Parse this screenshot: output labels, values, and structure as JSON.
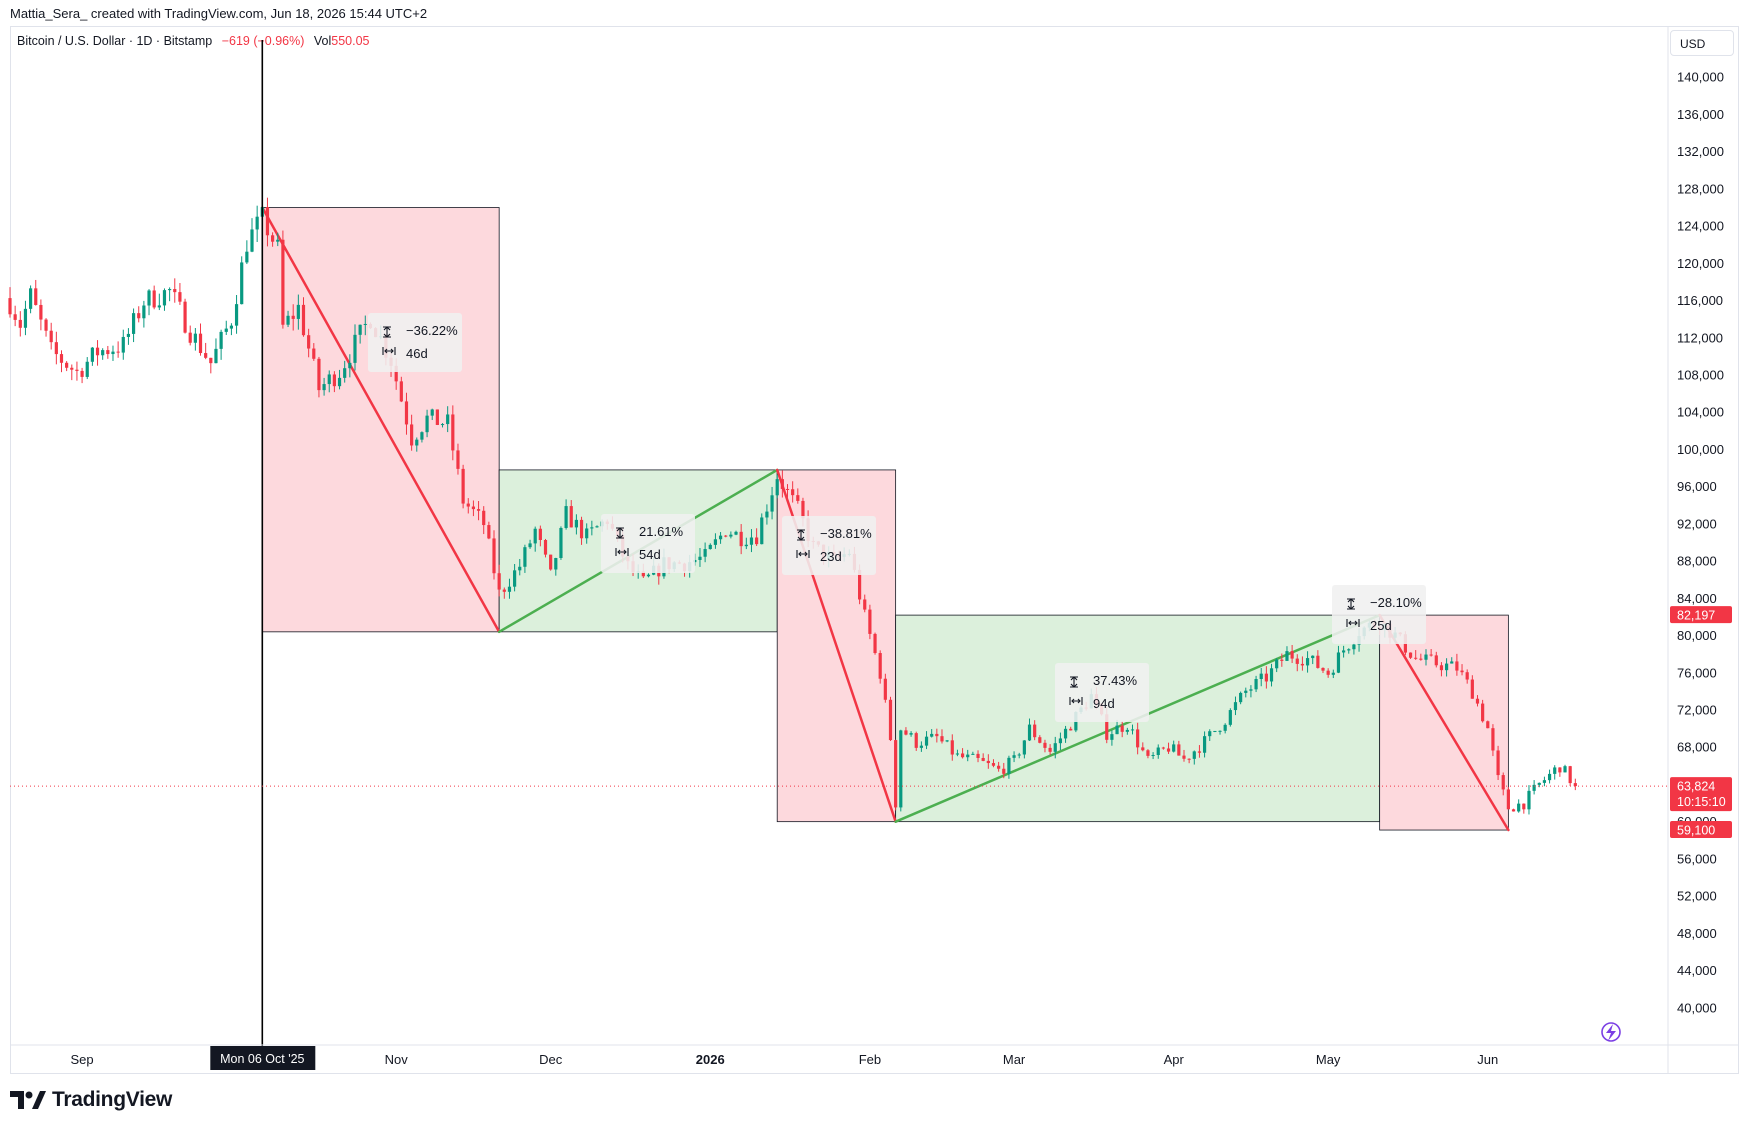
{
  "credit": "Mattia_Sera_ created with TradingView.com, Jun 18, 2026 15:44 UTC+2",
  "legend": {
    "symbol": "Bitcoin / U.S. Dollar · 1D · Bitstamp",
    "change": "−619 (−0.96%)",
    "vol_label": "Vol",
    "vol_value": "550.05"
  },
  "currency": "USD",
  "brand": "TradingView",
  "colors": {
    "up": "#089981",
    "down": "#f23645",
    "bear_zone": "#fdd9dd",
    "bull_zone": "#dcf0dc",
    "bear_line": "#f23645",
    "bull_line": "#4caf50"
  },
  "chart_data": {
    "type": "candlestick",
    "symbol": "BTCUSD",
    "interval": "1D",
    "ylim": [
      36000,
      144000
    ],
    "y_ticks": [
      40000,
      44000,
      48000,
      52000,
      56000,
      60000,
      64000,
      68000,
      72000,
      76000,
      80000,
      84000,
      88000,
      92000,
      96000,
      100000,
      104000,
      108000,
      112000,
      116000,
      120000,
      124000,
      128000,
      132000,
      136000,
      140000
    ],
    "x_ticks": [
      {
        "label": "Sep",
        "date": "2025-09-01",
        "bold": false
      },
      {
        "label": "Nov",
        "date": "2025-11-01",
        "bold": false
      },
      {
        "label": "Dec",
        "date": "2025-12-01",
        "bold": false
      },
      {
        "label": "2026",
        "date": "2026-01-01",
        "bold": true
      },
      {
        "label": "Feb",
        "date": "2026-02-01",
        "bold": false
      },
      {
        "label": "Mar",
        "date": "2026-03-01",
        "bold": false
      },
      {
        "label": "Apr",
        "date": "2026-04-01",
        "bold": false
      },
      {
        "label": "May",
        "date": "2026-05-01",
        "bold": false
      },
      {
        "label": "Jun",
        "date": "2026-06-01",
        "bold": false
      }
    ],
    "x_start": "2025-08-18",
    "x_end": "2026-07-06",
    "crosshair": {
      "date": "2025-10-06",
      "label": "Mon 06 Oct '25"
    },
    "price_tags": [
      {
        "price": 82197,
        "label": "82,197",
        "kind": "level"
      },
      {
        "price": 63824,
        "label": "63,824",
        "countdown": "10:15:10",
        "kind": "last"
      },
      {
        "price": 59100,
        "label": "59,100",
        "kind": "level"
      }
    ],
    "ranges": [
      {
        "kind": "bear",
        "start": "2025-10-06",
        "end": "2025-11-21",
        "high": 126000,
        "low": 80400,
        "pct": "−36.22%",
        "duration": "46d"
      },
      {
        "kind": "bull",
        "start": "2025-11-21",
        "end": "2026-01-14",
        "high": 97800,
        "low": 80400,
        "pct": "21.61%",
        "duration": "54d"
      },
      {
        "kind": "bear",
        "start": "2026-01-14",
        "end": "2026-02-06",
        "high": 97800,
        "low": 60000,
        "pct": "−38.81%",
        "duration": "23d"
      },
      {
        "kind": "bull",
        "start": "2026-02-06",
        "end": "2026-05-11",
        "high": 82197,
        "low": 60000,
        "pct": "37.43%",
        "duration": "94d"
      },
      {
        "kind": "bear",
        "start": "2026-05-11",
        "end": "2026-06-05",
        "high": 82197,
        "low": 59100,
        "pct": "−28.10%",
        "duration": "25d"
      }
    ],
    "anchors": [
      {
        "date": "2025-08-18",
        "close": 115800
      },
      {
        "date": "2025-08-20",
        "close": 113500
      },
      {
        "date": "2025-08-22",
        "close": 116500
      },
      {
        "date": "2025-08-26",
        "close": 110500
      },
      {
        "date": "2025-08-31",
        "close": 108300
      },
      {
        "date": "2025-09-04",
        "close": 110500
      },
      {
        "date": "2025-09-09",
        "close": 111200
      },
      {
        "date": "2025-09-13",
        "close": 115900
      },
      {
        "date": "2025-09-18",
        "close": 117000
      },
      {
        "date": "2025-09-22",
        "close": 112700
      },
      {
        "date": "2025-09-26",
        "close": 109300
      },
      {
        "date": "2025-09-30",
        "close": 114000
      },
      {
        "date": "2025-10-03",
        "close": 122300
      },
      {
        "date": "2025-10-06",
        "close": 124800
      },
      {
        "date": "2025-10-09",
        "close": 121500
      },
      {
        "date": "2025-10-10",
        "close": 113100
      },
      {
        "date": "2025-10-13",
        "close": 115200
      },
      {
        "date": "2025-10-17",
        "close": 106500
      },
      {
        "date": "2025-10-21",
        "close": 108400
      },
      {
        "date": "2025-10-27",
        "close": 114200
      },
      {
        "date": "2025-10-31",
        "close": 109600
      },
      {
        "date": "2025-11-04",
        "close": 101200
      },
      {
        "date": "2025-11-07",
        "close": 103300
      },
      {
        "date": "2025-11-11",
        "close": 102800
      },
      {
        "date": "2025-11-14",
        "close": 94500
      },
      {
        "date": "2025-11-18",
        "close": 92000
      },
      {
        "date": "2025-11-21",
        "close": 84500
      },
      {
        "date": "2025-11-25",
        "close": 87500
      },
      {
        "date": "2025-11-28",
        "close": 91300
      },
      {
        "date": "2025-12-01",
        "close": 86300
      },
      {
        "date": "2025-12-04",
        "close": 93000
      },
      {
        "date": "2025-12-08",
        "close": 90600
      },
      {
        "date": "2025-12-12",
        "close": 92500
      },
      {
        "date": "2025-12-16",
        "close": 87400
      },
      {
        "date": "2025-12-19",
        "close": 85600
      },
      {
        "date": "2025-12-23",
        "close": 87700
      },
      {
        "date": "2025-12-27",
        "close": 87800
      },
      {
        "date": "2025-12-31",
        "close": 88400
      },
      {
        "date": "2026-01-04",
        "close": 91400
      },
      {
        "date": "2026-01-07",
        "close": 90600
      },
      {
        "date": "2026-01-10",
        "close": 90800
      },
      {
        "date": "2026-01-14",
        "close": 97200
      },
      {
        "date": "2026-01-18",
        "close": 93500
      },
      {
        "date": "2026-01-21",
        "close": 89500
      },
      {
        "date": "2026-01-25",
        "close": 88000
      },
      {
        "date": "2026-01-28",
        "close": 89000
      },
      {
        "date": "2026-01-31",
        "close": 82000
      },
      {
        "date": "2026-02-03",
        "close": 76000
      },
      {
        "date": "2026-02-05",
        "close": 69000
      },
      {
        "date": "2026-02-06",
        "close": 62000
      },
      {
        "date": "2026-02-07",
        "close": 70000
      },
      {
        "date": "2026-02-10",
        "close": 68500
      },
      {
        "date": "2026-02-14",
        "close": 69000
      },
      {
        "date": "2026-02-18",
        "close": 67000
      },
      {
        "date": "2026-02-22",
        "close": 66500
      },
      {
        "date": "2026-02-26",
        "close": 65500
      },
      {
        "date": "2026-03-01",
        "close": 66500
      },
      {
        "date": "2026-03-04",
        "close": 70000
      },
      {
        "date": "2026-03-08",
        "close": 67500
      },
      {
        "date": "2026-03-12",
        "close": 70500
      },
      {
        "date": "2026-03-16",
        "close": 73500
      },
      {
        "date": "2026-03-19",
        "close": 69500
      },
      {
        "date": "2026-03-23",
        "close": 70500
      },
      {
        "date": "2026-03-27",
        "close": 66500
      },
      {
        "date": "2026-03-31",
        "close": 68000
      },
      {
        "date": "2026-04-03",
        "close": 66700
      },
      {
        "date": "2026-04-07",
        "close": 68600
      },
      {
        "date": "2026-04-11",
        "close": 71000
      },
      {
        "date": "2026-04-15",
        "close": 74000
      },
      {
        "date": "2026-04-19",
        "close": 75500
      },
      {
        "date": "2026-04-23",
        "close": 78000
      },
      {
        "date": "2026-04-27",
        "close": 77500
      },
      {
        "date": "2026-05-01",
        "close": 76000
      },
      {
        "date": "2026-05-04",
        "close": 78500
      },
      {
        "date": "2026-05-07",
        "close": 80500
      },
      {
        "date": "2026-05-11",
        "close": 81500
      },
      {
        "date": "2026-05-14",
        "close": 80000
      },
      {
        "date": "2026-05-18",
        "close": 77500
      },
      {
        "date": "2026-05-22",
        "close": 77000
      },
      {
        "date": "2026-05-26",
        "close": 76500
      },
      {
        "date": "2026-05-29",
        "close": 74000
      },
      {
        "date": "2026-06-01",
        "close": 70000
      },
      {
        "date": "2026-06-03",
        "close": 64500
      },
      {
        "date": "2026-06-05",
        "close": 61500
      },
      {
        "date": "2026-06-08",
        "close": 62000
      },
      {
        "date": "2026-06-11",
        "close": 64000
      },
      {
        "date": "2026-06-15",
        "close": 66000
      },
      {
        "date": "2026-06-18",
        "close": 63824
      }
    ]
  }
}
